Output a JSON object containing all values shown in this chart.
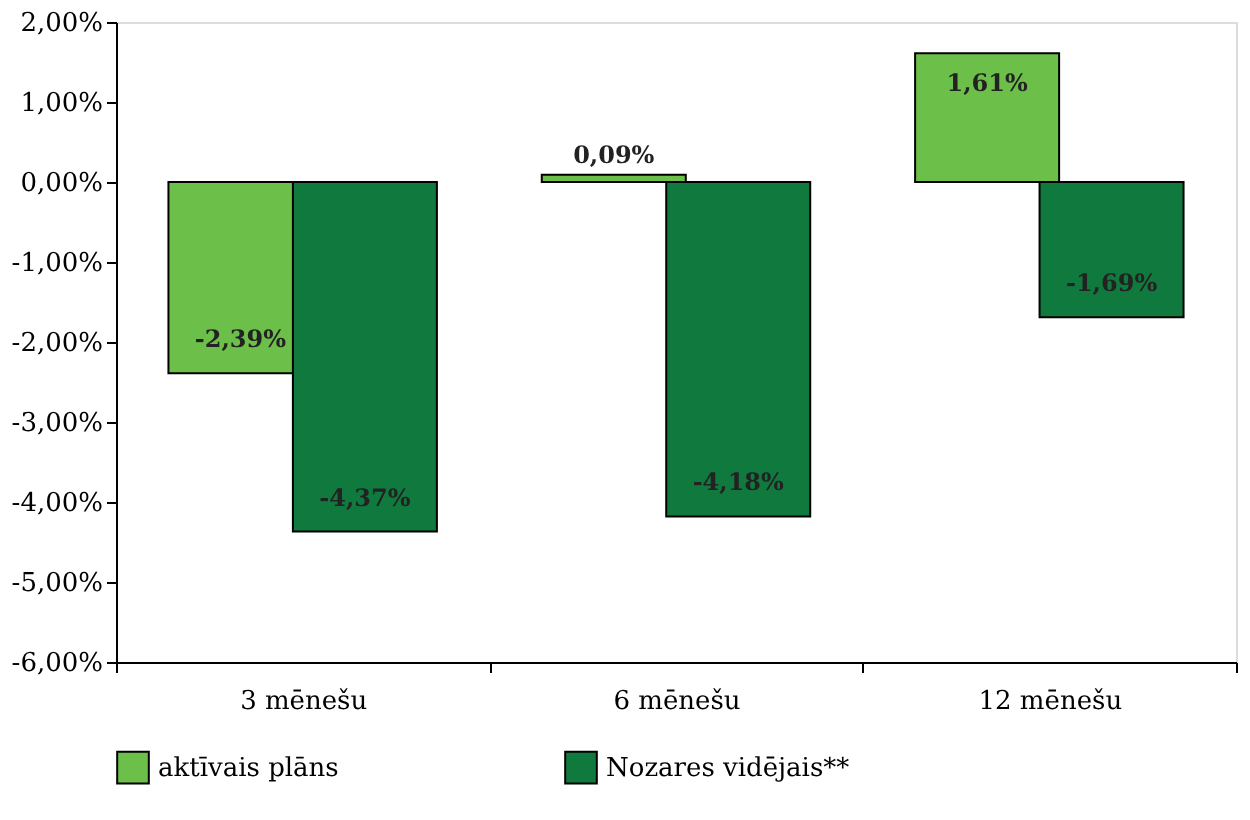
{
  "chart_data": {
    "type": "bar",
    "categories": [
      "3 mēnešu",
      "6 mēnešu",
      "12 mēnešu"
    ],
    "series": [
      {
        "name": "aktīvais plāns",
        "color": "#6cc04a",
        "values": [
          -2.39,
          0.09,
          1.61
        ],
        "value_labels": [
          "-2,39%",
          "0,09%",
          "1,61%"
        ]
      },
      {
        "name": "Nozares vidējais**",
        "color": "#107a3e",
        "values": [
          -4.37,
          -4.18,
          -1.69
        ],
        "value_labels": [
          "-4,37%",
          "-4,18%",
          "-1,69%"
        ]
      }
    ],
    "ylim": [
      -6,
      2
    ],
    "yticks": [
      {
        "value": -6,
        "label": "-6,00%"
      },
      {
        "value": -5,
        "label": "-5,00%"
      },
      {
        "value": -4,
        "label": "-4,00%"
      },
      {
        "value": -3,
        "label": "-3,00%"
      },
      {
        "value": -2,
        "label": "-2,00%"
      },
      {
        "value": -1,
        "label": "-1,00%"
      },
      {
        "value": 0,
        "label": "0,00%"
      },
      {
        "value": 1,
        "label": "1,00%"
      },
      {
        "value": 2,
        "label": "2,00%"
      }
    ],
    "grid": false,
    "legend": "bottom"
  }
}
